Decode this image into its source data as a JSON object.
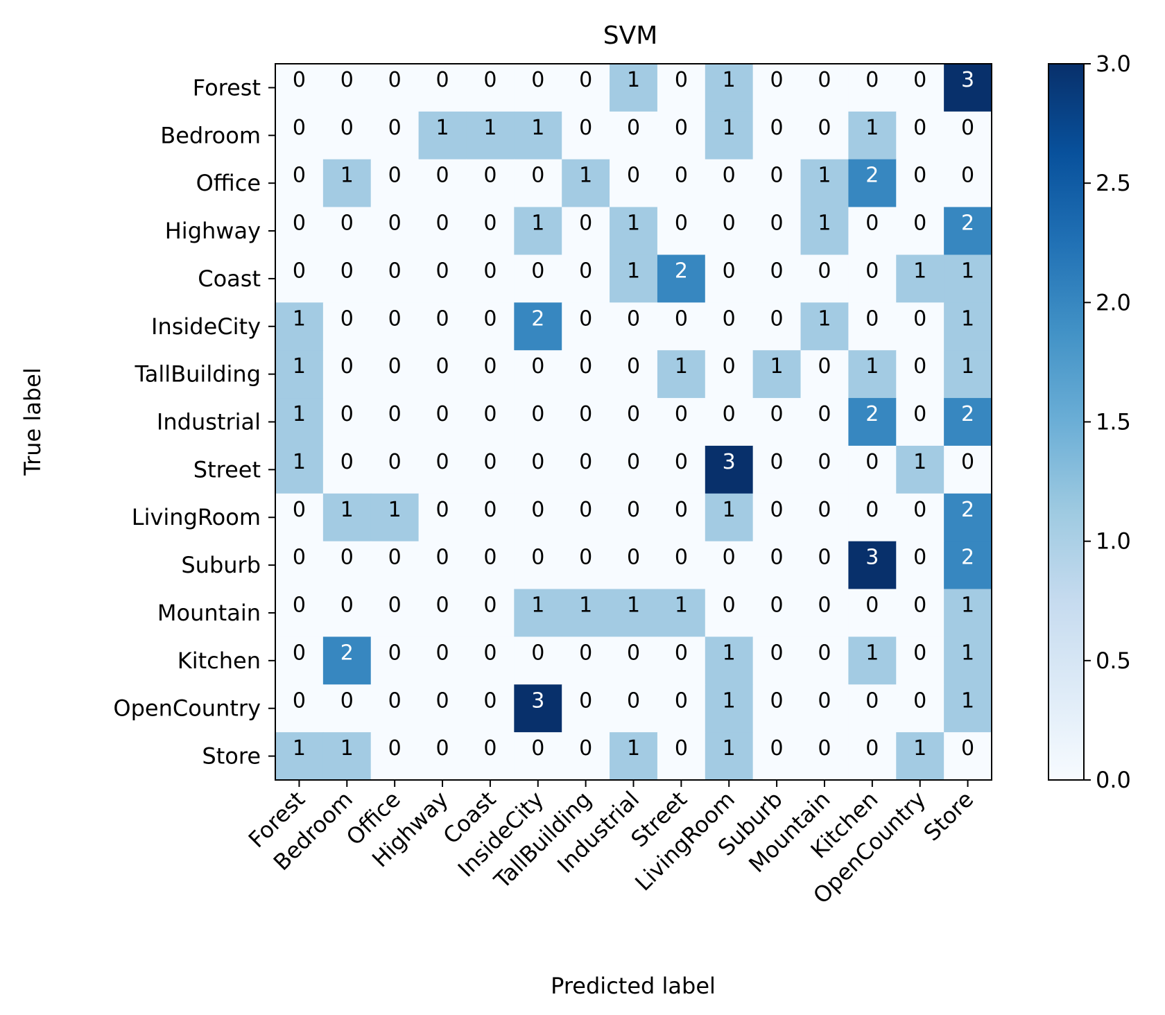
{
  "chart_data": {
    "type": "heatmap",
    "title": "SVM",
    "xlabel": "Predicted label",
    "ylabel": "True label",
    "x_categories": [
      "Forest",
      "Bedroom",
      "Office",
      "Highway",
      "Coast",
      "InsideCity",
      "TallBuilding",
      "Industrial",
      "Street",
      "LivingRoom",
      "Suburb",
      "Mountain",
      "Kitchen",
      "OpenCountry",
      "Store"
    ],
    "y_categories": [
      "Forest",
      "Bedroom",
      "Office",
      "Highway",
      "Coast",
      "InsideCity",
      "TallBuilding",
      "Industrial",
      "Street",
      "LivingRoom",
      "Suburb",
      "Mountain",
      "Kitchen",
      "OpenCountry",
      "Store"
    ],
    "values": [
      [
        0,
        0,
        0,
        0,
        0,
        0,
        0,
        1,
        0,
        1,
        0,
        0,
        0,
        0,
        3
      ],
      [
        0,
        0,
        0,
        1,
        1,
        1,
        0,
        0,
        0,
        1,
        0,
        0,
        1,
        0,
        0
      ],
      [
        0,
        1,
        0,
        0,
        0,
        0,
        1,
        0,
        0,
        0,
        0,
        1,
        2,
        0,
        0
      ],
      [
        0,
        0,
        0,
        0,
        0,
        1,
        0,
        1,
        0,
        0,
        0,
        1,
        0,
        0,
        2
      ],
      [
        0,
        0,
        0,
        0,
        0,
        0,
        0,
        1,
        2,
        0,
        0,
        0,
        0,
        1,
        1
      ],
      [
        1,
        0,
        0,
        0,
        0,
        2,
        0,
        0,
        0,
        0,
        0,
        1,
        0,
        0,
        1
      ],
      [
        1,
        0,
        0,
        0,
        0,
        0,
        0,
        0,
        1,
        0,
        1,
        0,
        1,
        0,
        1
      ],
      [
        1,
        0,
        0,
        0,
        0,
        0,
        0,
        0,
        0,
        0,
        0,
        0,
        2,
        0,
        2
      ],
      [
        1,
        0,
        0,
        0,
        0,
        0,
        0,
        0,
        0,
        3,
        0,
        0,
        0,
        1,
        0
      ],
      [
        0,
        1,
        1,
        0,
        0,
        0,
        0,
        0,
        0,
        1,
        0,
        0,
        0,
        0,
        2
      ],
      [
        0,
        0,
        0,
        0,
        0,
        0,
        0,
        0,
        0,
        0,
        0,
        0,
        3,
        0,
        2
      ],
      [
        0,
        0,
        0,
        0,
        0,
        1,
        1,
        1,
        1,
        0,
        0,
        0,
        0,
        0,
        1
      ],
      [
        0,
        2,
        0,
        0,
        0,
        0,
        0,
        0,
        0,
        1,
        0,
        0,
        1,
        0,
        1
      ],
      [
        0,
        0,
        0,
        0,
        0,
        3,
        0,
        0,
        0,
        1,
        0,
        0,
        0,
        0,
        1
      ],
      [
        1,
        1,
        0,
        0,
        0,
        0,
        0,
        1,
        0,
        1,
        0,
        0,
        0,
        1,
        0
      ]
    ],
    "colorbar": {
      "range": [
        0,
        3
      ],
      "ticks": [
        0.0,
        0.5,
        1.0,
        1.5,
        2.0,
        2.5,
        3.0
      ],
      "tick_labels": [
        "0.0",
        "0.5",
        "1.0",
        "1.5",
        "2.0",
        "2.5",
        "3.0"
      ],
      "colormap": "Blues"
    },
    "colors": {
      "0": "#f7fbff",
      "1": "#a3cbe3",
      "2": "#3787c0",
      "3": "#08306b",
      "text_dark": "#000000",
      "text_light": "#ffffff"
    },
    "grid": false
  }
}
